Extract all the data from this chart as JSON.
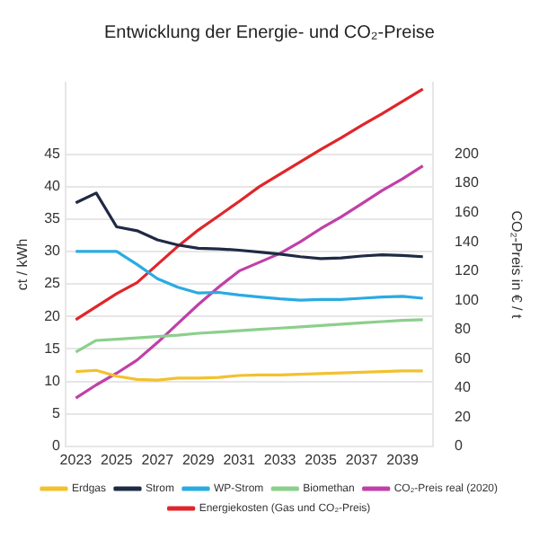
{
  "chart_data": {
    "type": "line",
    "title": "Entwicklung der Energie- und CO₂-Preise",
    "ylabel": "ct / kWh",
    "y2label": "CO₂-Preis in € / t",
    "x": [
      2023,
      2024,
      2025,
      2026,
      2027,
      2028,
      2029,
      2030,
      2031,
      2032,
      2033,
      2034,
      2035,
      2036,
      2037,
      2038,
      2039,
      2040
    ],
    "xlim": [
      2022.5,
      2040.5
    ],
    "xticks": [
      2023,
      2025,
      2027,
      2029,
      2031,
      2033,
      2035,
      2037,
      2039
    ],
    "ylim": [
      0,
      56
    ],
    "yticks": [
      0,
      5,
      10,
      15,
      20,
      25,
      30,
      35,
      40,
      45
    ],
    "y2lim": [
      0,
      248.9
    ],
    "y2ticks": [
      0,
      20,
      40,
      60,
      80,
      100,
      120,
      140,
      160,
      180,
      200
    ],
    "grid": "y",
    "legend": "bottom",
    "marker": "none",
    "line_style": "solid",
    "series": [
      {
        "name": "Erdgas",
        "color": "#f2c12e",
        "values": [
          11.5,
          11.7,
          10.8,
          10.3,
          10.2,
          10.5,
          10.5,
          10.6,
          10.9,
          11.0,
          11.0,
          11.1,
          11.2,
          11.3,
          11.4,
          11.5,
          11.6,
          11.6
        ]
      },
      {
        "name": "Strom",
        "color": "#1f2a44",
        "values": [
          37.5,
          39,
          33.8,
          33.2,
          31.8,
          31,
          30.5,
          30.4,
          30.2,
          29.9,
          29.6,
          29.2,
          28.9,
          29.0,
          29.3,
          29.5,
          29.4,
          29.2
        ]
      },
      {
        "name": "WP-Strom",
        "color": "#29abe2",
        "values": [
          30,
          30,
          30,
          28,
          25.8,
          24.5,
          23.6,
          23.7,
          23.3,
          23,
          22.7,
          22.5,
          22.6,
          22.6,
          22.8,
          23,
          23.1,
          22.8
        ]
      },
      {
        "name": "Biomethan",
        "color": "#8ccf8c",
        "values": [
          14.5,
          16.3,
          16.5,
          16.7,
          16.9,
          17.1,
          17.4,
          17.6,
          17.8,
          18,
          18.2,
          18.4,
          18.6,
          18.8,
          19,
          19.2,
          19.4,
          19.5
        ]
      },
      {
        "name": "CO₂-Preis real (2020)",
        "color": "#c040a8",
        "axis": "y2",
        "values": [
          33,
          42,
          50,
          59,
          71,
          84,
          97,
          109,
          120,
          126,
          132,
          140,
          149,
          157,
          166,
          175,
          183,
          192
        ]
      },
      {
        "name": "Energiekosten (Gas und CO₂-Preis)",
        "color": "#e0262a",
        "values": [
          19.5,
          21.5,
          23.5,
          25.2,
          28,
          30.8,
          33.3,
          35.5,
          37.7,
          40,
          41.9,
          43.8,
          45.7,
          47.5,
          49.4,
          51.2,
          53.1,
          55
        ]
      }
    ]
  }
}
